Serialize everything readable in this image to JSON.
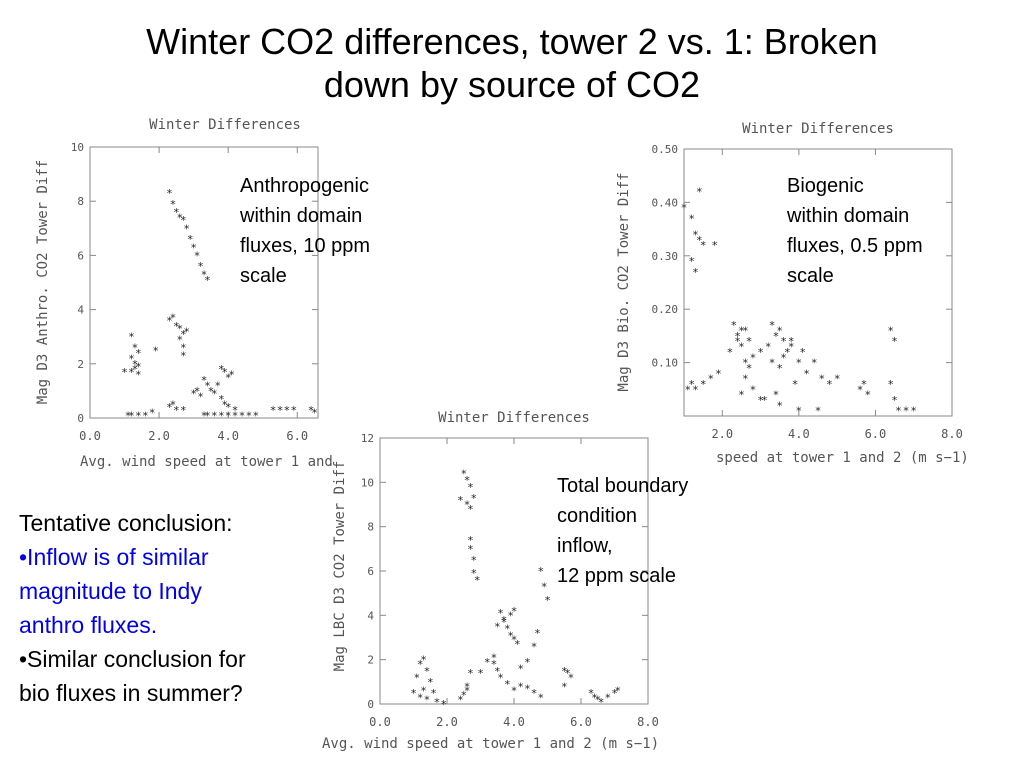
{
  "slide": {
    "title_line1": "Winter CO2 differences, tower 2 vs. 1: Broken",
    "title_line2": "down by source of CO2"
  },
  "annotations": {
    "anthro": [
      "Anthropogenic",
      "within domain",
      "fluxes, 10 ppm",
      "scale"
    ],
    "bio": [
      "Biogenic",
      "within domain",
      "fluxes, 0.5 ppm",
      "scale"
    ],
    "total": [
      "Total boundary",
      "condition",
      "inflow,",
      "12 ppm scale"
    ]
  },
  "conclusion": {
    "heading": "Tentative conclusion:",
    "bullet1_line1": "•Inflow is of similar",
    "bullet1_line2": "magnitude to Indy",
    "bullet1_line3": "anthro fluxes.",
    "bullet2_line1": "•Similar conclusion for",
    "bullet2_line2": "bio fluxes in summer?",
    "bullet1_color": "#0000ee"
  },
  "chart_data": [
    {
      "type": "scatter",
      "title": "Winter Differences",
      "xlabel": "Avg. wind speed at tower 1 and",
      "ylabel": "Mag D3 Anthro. CO2 Tower Diff",
      "xlim": [
        0,
        6.6
      ],
      "ylim": [
        0,
        10
      ],
      "xticks": [
        "0.0",
        "2.0",
        "4.0",
        "6.0"
      ],
      "xtick_values": [
        0,
        2,
        4,
        6
      ],
      "yticks": [
        "0",
        "2",
        "4",
        "6",
        "8",
        "10"
      ],
      "ytick_values": [
        0,
        2,
        4,
        6,
        8,
        10
      ],
      "marker": "*",
      "x": [
        2.3,
        2.4,
        2.5,
        2.6,
        2.7,
        2.8,
        2.9,
        3.0,
        3.1,
        3.2,
        3.3,
        3.4,
        1.2,
        1.3,
        1.4,
        1.2,
        1.3,
        1.4,
        1.0,
        1.2,
        1.3,
        1.4,
        1.9,
        2.3,
        2.4,
        2.5,
        2.6,
        2.7,
        2.6,
        2.7,
        2.7,
        2.8,
        1.1,
        1.2,
        1.4,
        1.6,
        1.8,
        2.3,
        2.4,
        2.5,
        2.7,
        3.0,
        3.1,
        3.2,
        3.3,
        3.4,
        3.5,
        3.6,
        3.7,
        3.8,
        3.9,
        4.0,
        4.1,
        3.8,
        3.9,
        4.0,
        4.2,
        4.4,
        4.6,
        4.8,
        5.3,
        5.5,
        5.7,
        5.9,
        6.4,
        6.5,
        3.3,
        3.4,
        3.6,
        3.8,
        4.0,
        4.2
      ],
      "y": [
        8.3,
        7.9,
        7.6,
        7.4,
        7.3,
        7.0,
        6.6,
        6.3,
        6.0,
        5.6,
        5.3,
        5.1,
        3.0,
        2.6,
        2.4,
        2.2,
        2.0,
        1.9,
        1.7,
        1.7,
        1.8,
        1.6,
        2.5,
        3.6,
        3.7,
        3.4,
        3.3,
        3.1,
        2.9,
        2.6,
        2.3,
        3.2,
        0.1,
        0.1,
        0.1,
        0.1,
        0.2,
        0.4,
        0.5,
        0.3,
        0.3,
        0.9,
        1.0,
        0.8,
        1.4,
        1.2,
        1.0,
        0.9,
        1.2,
        1.8,
        1.7,
        1.5,
        1.6,
        0.7,
        0.5,
        0.4,
        0.3,
        0.1,
        0.1,
        0.1,
        0.3,
        0.3,
        0.3,
        0.3,
        0.3,
        0.2,
        0.1,
        0.1,
        0.1,
        0.1,
        0.1,
        0.1
      ]
    },
    {
      "type": "scatter",
      "title": "Winter Differences",
      "xlabel": "speed at tower 1 and 2 (m s−1)",
      "ylabel": "Mag D3 Bio. CO2 Tower Diff",
      "xlim": [
        1,
        8
      ],
      "ylim": [
        0,
        0.5
      ],
      "xticks": [
        "2.0",
        "4.0",
        "6.0",
        "8.0"
      ],
      "xtick_values": [
        2,
        4,
        6,
        8
      ],
      "yticks": [
        "0.10",
        "0.20",
        "0.30",
        "0.40",
        "0.50"
      ],
      "ytick_values": [
        0.1,
        0.2,
        0.3,
        0.4,
        0.5
      ],
      "marker": "*",
      "x": [
        1.0,
        1.2,
        1.3,
        1.4,
        1.4,
        1.2,
        1.5,
        1.3,
        1.8,
        1.1,
        1.2,
        1.3,
        1.5,
        1.7,
        1.9,
        2.2,
        2.4,
        2.5,
        2.6,
        2.7,
        2.8,
        3.0,
        3.2,
        3.3,
        3.5,
        3.6,
        3.8,
        4.0,
        4.1,
        2.3,
        2.4,
        2.5,
        2.6,
        2.7,
        3.3,
        3.4,
        3.5,
        3.6,
        3.7,
        3.8,
        4.2,
        4.4,
        4.6,
        4.8,
        5.0,
        5.6,
        5.7,
        5.8,
        6.4,
        6.5,
        6.6,
        6.8,
        7.0,
        6.4,
        6.5,
        2.5,
        3.0,
        3.5,
        4.0,
        4.5,
        2.6,
        2.8,
        3.1,
        3.4,
        3.9
      ],
      "y": [
        0.39,
        0.37,
        0.34,
        0.42,
        0.33,
        0.29,
        0.32,
        0.27,
        0.32,
        0.05,
        0.06,
        0.05,
        0.06,
        0.07,
        0.08,
        0.12,
        0.14,
        0.13,
        0.1,
        0.09,
        0.11,
        0.12,
        0.13,
        0.1,
        0.09,
        0.11,
        0.14,
        0.1,
        0.12,
        0.17,
        0.15,
        0.16,
        0.16,
        0.14,
        0.17,
        0.15,
        0.16,
        0.14,
        0.12,
        0.13,
        0.08,
        0.1,
        0.07,
        0.06,
        0.07,
        0.05,
        0.06,
        0.04,
        0.06,
        0.03,
        0.01,
        0.01,
        0.01,
        0.16,
        0.14,
        0.04,
        0.03,
        0.02,
        0.01,
        0.01,
        0.07,
        0.05,
        0.03,
        0.04,
        0.06
      ]
    },
    {
      "type": "scatter",
      "title": "Winter Differences",
      "xlabel": "Avg. wind speed at tower 1 and 2 (m s−1)",
      "ylabel": "Mag LBC D3 CO2 Tower Diff",
      "xlim": [
        0,
        8
      ],
      "ylim": [
        0,
        12
      ],
      "xticks": [
        "0.0",
        "2.0",
        "4.0",
        "6.0",
        "8.0"
      ],
      "xtick_values": [
        0,
        2,
        4,
        6,
        8
      ],
      "yticks": [
        "0",
        "2",
        "4",
        "6",
        "8",
        "10",
        "12"
      ],
      "ytick_values": [
        0,
        2,
        4,
        6,
        8,
        10,
        12
      ],
      "marker": "*",
      "x": [
        2.5,
        2.6,
        2.7,
        2.4,
        2.8,
        2.7,
        2.6,
        2.7,
        2.7,
        2.8,
        2.8,
        2.9,
        1.0,
        1.1,
        1.2,
        1.3,
        1.4,
        1.5,
        1.3,
        1.2,
        1.4,
        1.6,
        1.7,
        1.9,
        2.4,
        2.5,
        2.6,
        2.7,
        2.6,
        3.0,
        3.2,
        3.4,
        3.5,
        3.6,
        3.7,
        3.8,
        3.9,
        4.0,
        4.1,
        3.4,
        3.5,
        3.6,
        3.8,
        4.0,
        4.2,
        4.4,
        4.6,
        4.8,
        4.8,
        4.9,
        5.0,
        4.7,
        5.5,
        5.6,
        5.7,
        5.5,
        6.3,
        6.4,
        6.5,
        6.6,
        6.8,
        7.0,
        7.1,
        4.2,
        4.4,
        4.6,
        4.0,
        3.9,
        3.7
      ],
      "y": [
        10.4,
        10.1,
        9.8,
        9.2,
        9.3,
        8.8,
        9.0,
        7.4,
        7.0,
        6.5,
        5.9,
        5.6,
        0.5,
        1.2,
        1.8,
        2.0,
        1.5,
        1.0,
        0.6,
        0.3,
        0.2,
        0.5,
        0.1,
        0.0,
        0.2,
        0.4,
        0.8,
        1.4,
        0.6,
        1.4,
        1.9,
        2.1,
        3.5,
        4.1,
        3.8,
        3.4,
        3.1,
        2.9,
        2.7,
        1.8,
        1.5,
        1.2,
        0.9,
        0.6,
        0.8,
        0.7,
        0.5,
        0.3,
        6.0,
        5.3,
        4.7,
        3.2,
        1.5,
        1.4,
        1.2,
        0.8,
        0.5,
        0.3,
        0.2,
        0.1,
        0.3,
        0.5,
        0.6,
        1.6,
        1.9,
        2.6,
        4.2,
        4.0,
        3.7
      ]
    }
  ]
}
